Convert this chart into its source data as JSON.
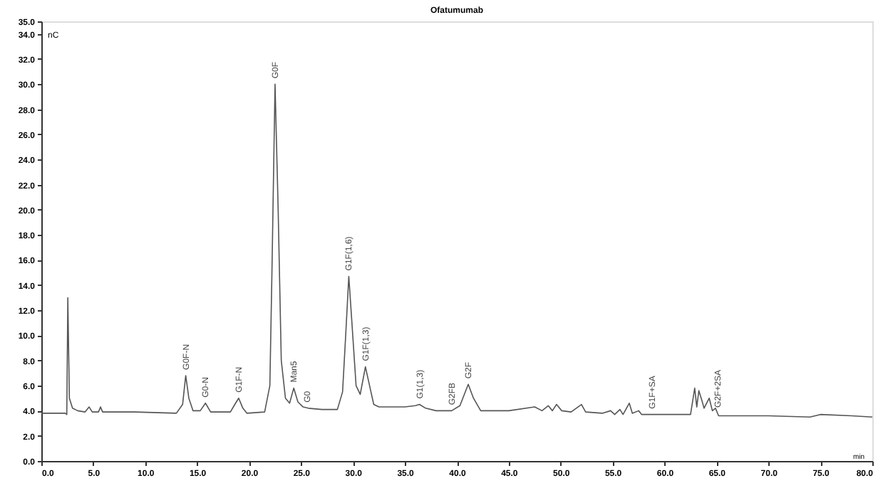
{
  "chart_data": {
    "type": "line",
    "title": "Ofatumumab",
    "xlabel": "min",
    "ylabel": "nC",
    "x": [
      0,
      2.3,
      2.45,
      2.55,
      2.7,
      3.0,
      3.5,
      4.2,
      4.6,
      4.9,
      5.5,
      5.7,
      5.9,
      9,
      13,
      13.6,
      13.9,
      14.2,
      14.6,
      15.3,
      15.8,
      16.3,
      18.2,
      18.7,
      19.0,
      19.4,
      19.8,
      21.5,
      22.0,
      22.2,
      22.5,
      22.8,
      23.1,
      23.5,
      23.9,
      24.3,
      24.7,
      25.2,
      25.7,
      27,
      28.5,
      29,
      29.3,
      29.6,
      29.9,
      30.3,
      30.7,
      31.2,
      31.6,
      32.0,
      32.5,
      35,
      36,
      36.4,
      37,
      38,
      39.5,
      40.3,
      41.1,
      41.6,
      42.3,
      45,
      47.5,
      48.2,
      48.8,
      49.2,
      49.6,
      50.1,
      51,
      52,
      52.4,
      54,
      54.8,
      55.2,
      55.7,
      56,
      56.6,
      56.9,
      57.5,
      57.8,
      62.5,
      62.9,
      63.1,
      63.3,
      63.6,
      63.8,
      64.3,
      64.6,
      64.9,
      65.2,
      70,
      74,
      75,
      78,
      80
    ],
    "series": [
      {
        "color": "#555555",
        "values": [
          3.8,
          3.8,
          3.7,
          13.0,
          5.0,
          4.2,
          4.0,
          3.9,
          4.3,
          3.9,
          3.9,
          4.3,
          3.9,
          3.9,
          3.8,
          4.5,
          6.8,
          5.0,
          4.0,
          4.0,
          4.6,
          3.9,
          3.9,
          4.6,
          5.0,
          4.2,
          3.8,
          3.9,
          6,
          15,
          30.0,
          20,
          8,
          5.0,
          4.6,
          5.8,
          4.7,
          4.3,
          4.2,
          4.1,
          4.1,
          5.5,
          10,
          14.7,
          11,
          6,
          5.3,
          7.5,
          6,
          4.5,
          4.3,
          4.3,
          4.4,
          4.5,
          4.2,
          4.0,
          4.0,
          4.4,
          6.1,
          5.0,
          4.0,
          4.0,
          4.3,
          4.0,
          4.4,
          4.0,
          4.5,
          4.0,
          3.9,
          4.5,
          3.9,
          3.8,
          4.0,
          3.7,
          4.1,
          3.7,
          4.6,
          3.8,
          4.0,
          3.7,
          3.7,
          5.8,
          4.3,
          5.6,
          4.8,
          4.2,
          5.0,
          4.0,
          4.2,
          3.6,
          3.6,
          3.5,
          3.7,
          3.6,
          3.5
        ]
      }
    ],
    "annotations": [
      {
        "text": "G0F-N",
        "x": 13.9,
        "y": 6.8
      },
      {
        "text": "G0-N",
        "x": 15.8,
        "y": 4.6
      },
      {
        "text": "G1F-N",
        "x": 19.0,
        "y": 5.0
      },
      {
        "text": "G0F",
        "x": 22.5,
        "y": 30.0
      },
      {
        "text": "Man5",
        "x": 24.3,
        "y": 5.8
      },
      {
        "text": "G0",
        "x": 25.6,
        "y": 4.2
      },
      {
        "text": "G1F(1,6)",
        "x": 29.6,
        "y": 14.7
      },
      {
        "text": "G1F(1,3)",
        "x": 31.2,
        "y": 7.5
      },
      {
        "text": "G1(1,3)",
        "x": 36.4,
        "y": 4.5
      },
      {
        "text": "G2FB",
        "x": 39.5,
        "y": 4.0
      },
      {
        "text": "G2F",
        "x": 41.1,
        "y": 6.1
      },
      {
        "text": "G1F+SA",
        "x": 58.8,
        "y": 3.7
      },
      {
        "text": "G2F+2SA",
        "x": 65.1,
        "y": 3.8
      }
    ],
    "xlim": [
      0,
      80
    ],
    "xticks": [
      {
        "value": 0,
        "label": "0.0"
      },
      {
        "value": 5,
        "label": "5.0"
      },
      {
        "value": 10,
        "label": "10.0"
      },
      {
        "value": 15,
        "label": "15.0"
      },
      {
        "value": 20,
        "label": "20.0"
      },
      {
        "value": 25,
        "label": "25.0"
      },
      {
        "value": 30,
        "label": "30.0"
      },
      {
        "value": 35,
        "label": "35.0"
      },
      {
        "value": 40,
        "label": "40.0"
      },
      {
        "value": 45,
        "label": "45.0"
      },
      {
        "value": 50,
        "label": "50.0"
      },
      {
        "value": 55,
        "label": "55.0"
      },
      {
        "value": 60,
        "label": "60.0"
      },
      {
        "value": 65,
        "label": "65.0"
      },
      {
        "value": 70,
        "label": "70.0"
      },
      {
        "value": 75,
        "label": "75.0"
      },
      {
        "value": 80,
        "label": "80.0"
      }
    ],
    "ylim": [
      0,
      35
    ],
    "yticks": [
      {
        "value": 0,
        "label": "0.0"
      },
      {
        "value": 2,
        "label": "2.0"
      },
      {
        "value": 4,
        "label": "4.0"
      },
      {
        "value": 6,
        "label": "6.0"
      },
      {
        "value": 8,
        "label": "8.0"
      },
      {
        "value": 10,
        "label": "10.0"
      },
      {
        "value": 12,
        "label": "12.0"
      },
      {
        "value": 14,
        "label": "14.0"
      },
      {
        "value": 16,
        "label": "16.0"
      },
      {
        "value": 18,
        "label": "18.0"
      },
      {
        "value": 20,
        "label": "20.0"
      },
      {
        "value": 22,
        "label": "22.0"
      },
      {
        "value": 24,
        "label": "24.0"
      },
      {
        "value": 26,
        "label": "26.0"
      },
      {
        "value": 28,
        "label": "28.0"
      },
      {
        "value": 30,
        "label": "30.0"
      },
      {
        "value": 32,
        "label": "32.0"
      },
      {
        "value": 34,
        "label": "34.0"
      },
      {
        "value": 35,
        "label": "35.0"
      }
    ],
    "grid": false,
    "legend": false,
    "marker": "none",
    "line_style": "solid"
  }
}
